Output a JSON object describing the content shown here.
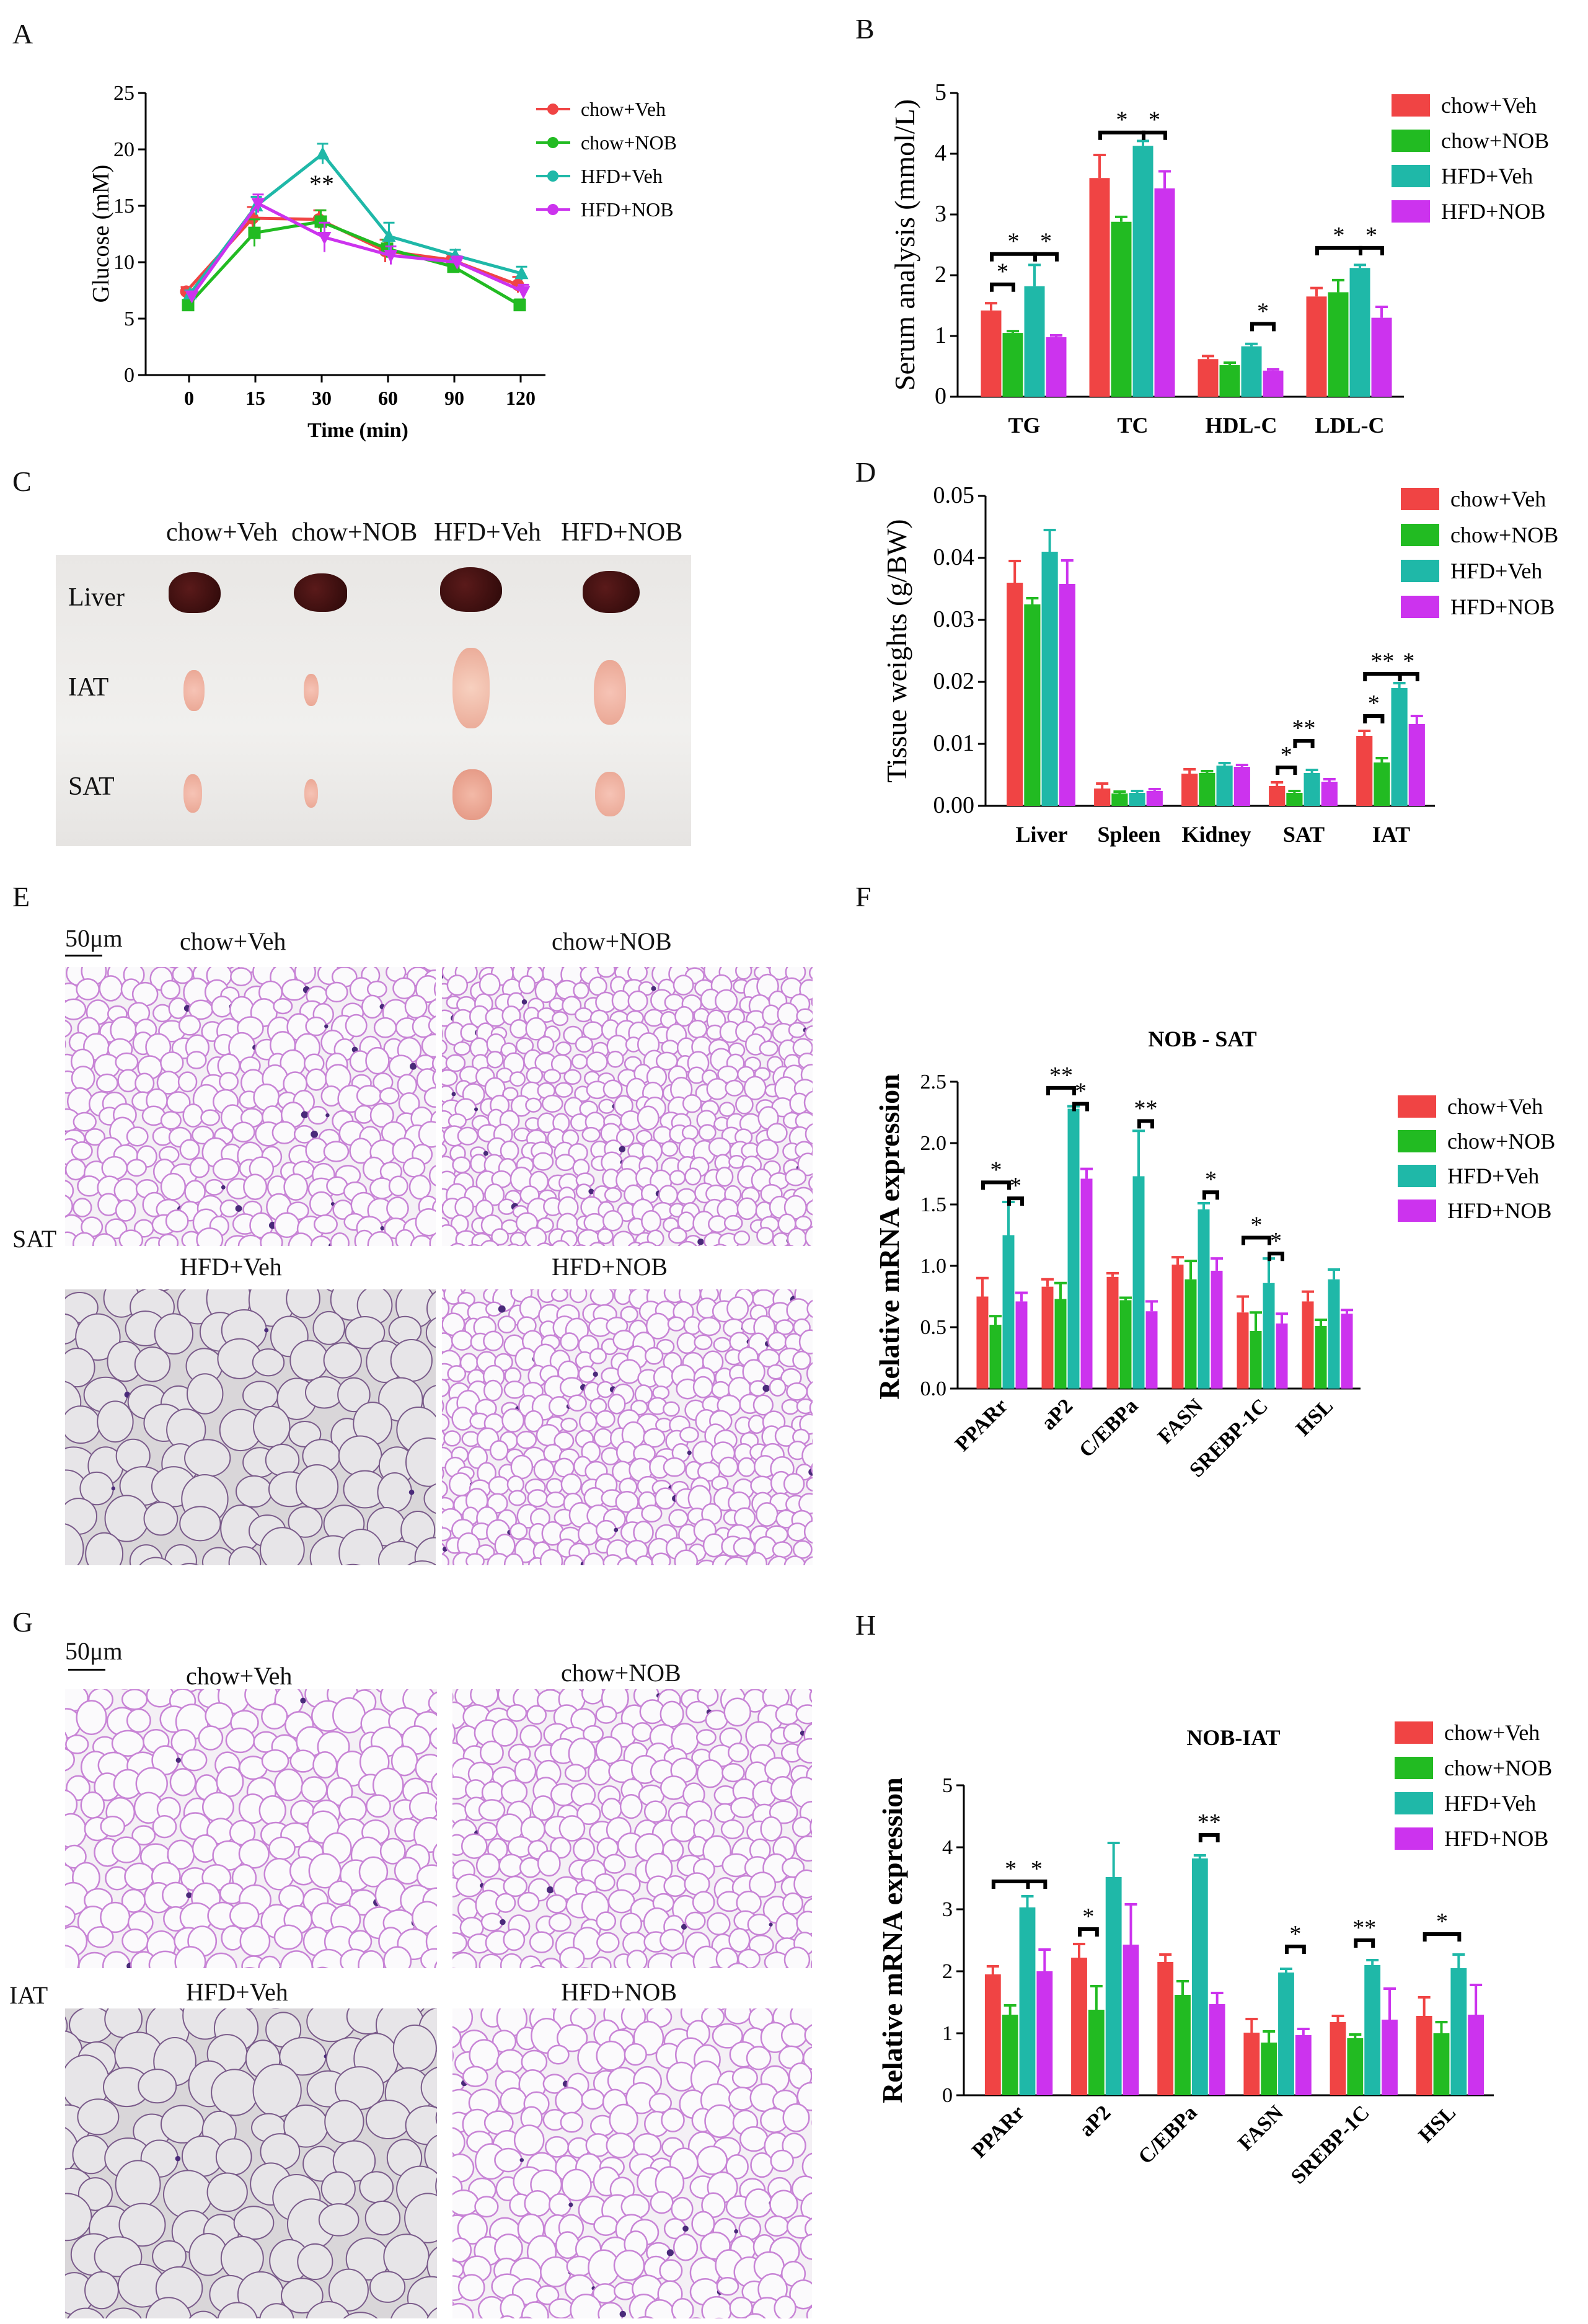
{
  "panels": {
    "A": "A",
    "B": "B",
    "C": "C",
    "D": "D",
    "E": "E",
    "F": "F",
    "G": "G",
    "H": "H"
  },
  "colors": {
    "chow_veh": "#f04444",
    "chow_nob": "#22bb22",
    "hfd_veh": "#1fb8a8",
    "hfd_nob": "#cc33ee"
  },
  "chart_data": [
    {
      "id": "A",
      "type": "line",
      "title": "",
      "xlabel": "Time (min)",
      "ylabel": "Glucose (mM)",
      "x": [
        "0",
        "15",
        "30",
        "60",
        "90",
        "120"
      ],
      "ylim": [
        0,
        25
      ],
      "yticks": [
        "0",
        "5",
        "10",
        "15",
        "20",
        "25"
      ],
      "annotations": [
        {
          "x_index": 2,
          "text": "**"
        }
      ],
      "series": [
        {
          "name": "chow+Veh",
          "values": [
            7.4,
            13.9,
            13.8,
            11.0,
            10.2,
            8.0
          ],
          "errors": [
            0.4,
            1.0,
            0.8,
            1.0,
            0.5,
            0.7
          ]
        },
        {
          "name": "chow+NOB",
          "values": [
            6.2,
            12.6,
            13.6,
            11.2,
            9.6,
            6.2
          ],
          "errors": [
            0.3,
            1.2,
            1.0,
            0.8,
            0.5,
            0.5
          ]
        },
        {
          "name": "HFD+Veh",
          "values": [
            7.2,
            15.0,
            19.6,
            12.3,
            10.6,
            9.0
          ],
          "errors": [
            0.3,
            0.8,
            0.9,
            1.2,
            0.5,
            0.6
          ]
        },
        {
          "name": "HFD+NOB",
          "values": [
            7.0,
            15.2,
            12.2,
            10.6,
            10.0,
            7.4
          ],
          "errors": [
            0.3,
            0.8,
            1.3,
            0.8,
            0.5,
            0.6
          ]
        }
      ]
    },
    {
      "id": "B",
      "type": "bar",
      "title": "",
      "xlabel": "",
      "ylabel": "Serum analysis (mmol/L)",
      "categories": [
        "TG",
        "TC",
        "HDL-C",
        "LDL-C"
      ],
      "ylim": [
        0,
        5
      ],
      "yticks": [
        "0",
        "1",
        "2",
        "3",
        "4",
        "5"
      ],
      "series": [
        {
          "name": "chow+Veh",
          "values": [
            1.42,
            3.6,
            0.62,
            1.65
          ],
          "errors": [
            0.12,
            0.38,
            0.05,
            0.14
          ]
        },
        {
          "name": "chow+NOB",
          "values": [
            1.05,
            2.88,
            0.52,
            1.72
          ],
          "errors": [
            0.03,
            0.08,
            0.04,
            0.2
          ]
        },
        {
          "name": "HFD+Veh",
          "values": [
            1.82,
            4.13,
            0.83,
            2.12
          ],
          "errors": [
            0.35,
            0.08,
            0.04,
            0.05
          ]
        },
        {
          "name": "HFD+NOB",
          "values": [
            0.98,
            3.43,
            0.43,
            1.3
          ],
          "errors": [
            0.03,
            0.28,
            0.02,
            0.18
          ]
        }
      ],
      "sig": [
        {
          "cat": 0,
          "from": 0,
          "to": 2,
          "level": 2.35,
          "text": "*"
        },
        {
          "cat": 0,
          "from": 2,
          "to": 3,
          "level": 2.35,
          "text": "*"
        },
        {
          "cat": 0,
          "from": 0,
          "to": 1,
          "level": 1.85,
          "text": "*"
        },
        {
          "cat": 1,
          "from": 0,
          "to": 2,
          "level": 4.35,
          "text": "*"
        },
        {
          "cat": 1,
          "from": 2,
          "to": 3,
          "level": 4.35,
          "text": "*"
        },
        {
          "cat": 2,
          "from": 2,
          "to": 3,
          "level": 1.2,
          "text": "*"
        },
        {
          "cat": 3,
          "from": 0,
          "to": 2,
          "level": 2.45,
          "text": "*"
        },
        {
          "cat": 3,
          "from": 2,
          "to": 3,
          "level": 2.45,
          "text": "*"
        }
      ]
    },
    {
      "id": "D",
      "type": "bar",
      "title": "",
      "xlabel": "",
      "ylabel": "Tissue weights (g/BW)",
      "categories": [
        "Liver",
        "Spleen",
        "Kidney",
        "SAT",
        "IAT"
      ],
      "ylim": [
        0,
        0.05
      ],
      "yticks": [
        "0.00",
        "0.01",
        "0.02",
        "0.03",
        "0.04",
        "0.05"
      ],
      "series": [
        {
          "name": "chow+Veh",
          "values": [
            0.036,
            0.0028,
            0.0052,
            0.0032,
            0.0113
          ],
          "errors": [
            0.0035,
            0.0008,
            0.0007,
            0.0006,
            0.0008
          ]
        },
        {
          "name": "chow+NOB",
          "values": [
            0.0325,
            0.002,
            0.0053,
            0.0021,
            0.007
          ],
          "errors": [
            0.001,
            0.0003,
            0.0003,
            0.0003,
            0.0007
          ]
        },
        {
          "name": "HFD+Veh",
          "values": [
            0.041,
            0.0021,
            0.0065,
            0.0053,
            0.019
          ],
          "errors": [
            0.0035,
            0.0003,
            0.0004,
            0.0005,
            0.0008
          ]
        },
        {
          "name": "HFD+NOB",
          "values": [
            0.0358,
            0.0024,
            0.0063,
            0.0039,
            0.0132
          ],
          "errors": [
            0.0038,
            0.0003,
            0.0003,
            0.0004,
            0.0013
          ]
        }
      ],
      "sig": [
        {
          "cat": 3,
          "from": 0,
          "to": 1,
          "level": 0.0062,
          "text": "*"
        },
        {
          "cat": 3,
          "from": 1,
          "to": 2,
          "level": 0.0105,
          "text": "**"
        },
        {
          "cat": 4,
          "from": 0,
          "to": 2,
          "level": 0.0213,
          "text": "**"
        },
        {
          "cat": 4,
          "from": 2,
          "to": 3,
          "level": 0.0213,
          "text": "*"
        },
        {
          "cat": 4,
          "from": 0,
          "to": 1,
          "level": 0.0145,
          "text": "*"
        }
      ]
    },
    {
      "id": "F",
      "type": "bar",
      "title": "NOB - SAT",
      "xlabel": "",
      "ylabel": "Relative  mRNA expression",
      "categories": [
        "PPARr",
        "aP2",
        "C/EBPa",
        "FASN",
        "SREBP-1C",
        "HSL"
      ],
      "ylim": [
        0,
        2.5
      ],
      "yticks": [
        "0.0",
        "0.5",
        "1.0",
        "1.5",
        "2.0",
        "2.5"
      ],
      "series": [
        {
          "name": "chow+Veh",
          "values": [
            0.75,
            0.83,
            0.91,
            1.01,
            0.62,
            0.71
          ],
          "errors": [
            0.15,
            0.06,
            0.03,
            0.06,
            0.13,
            0.08
          ]
        },
        {
          "name": "chow+NOB",
          "values": [
            0.52,
            0.73,
            0.72,
            0.89,
            0.47,
            0.51
          ],
          "errors": [
            0.07,
            0.13,
            0.02,
            0.15,
            0.15,
            0.05
          ]
        },
        {
          "name": "HFD+Veh",
          "values": [
            1.25,
            2.28,
            1.73,
            1.46,
            0.86,
            0.89
          ],
          "errors": [
            0.27,
            0.02,
            0.37,
            0.05,
            0.2,
            0.08
          ]
        },
        {
          "name": "HFD+NOB",
          "values": [
            0.71,
            1.71,
            0.63,
            0.96,
            0.53,
            0.61
          ],
          "errors": [
            0.07,
            0.08,
            0.08,
            0.1,
            0.08,
            0.03
          ]
        }
      ],
      "sig": [
        {
          "cat": 0,
          "from": 0,
          "to": 2,
          "level": 1.68,
          "text": "*"
        },
        {
          "cat": 0,
          "from": 2,
          "to": 3,
          "level": 1.55,
          "text": "*"
        },
        {
          "cat": 1,
          "from": 0,
          "to": 2,
          "level": 2.45,
          "text": "**"
        },
        {
          "cat": 1,
          "from": 2,
          "to": 3,
          "level": 2.32,
          "text": "*"
        },
        {
          "cat": 2,
          "from": 2,
          "to": 3,
          "level": 2.18,
          "text": "**"
        },
        {
          "cat": 3,
          "from": 2,
          "to": 3,
          "level": 1.6,
          "text": "*"
        },
        {
          "cat": 4,
          "from": 0,
          "to": 2,
          "level": 1.23,
          "text": "*"
        },
        {
          "cat": 4,
          "from": 2,
          "to": 3,
          "level": 1.1,
          "text": "*"
        }
      ]
    },
    {
      "id": "H",
      "type": "bar",
      "title": "NOB-IAT",
      "xlabel": "",
      "ylabel": "Relative mRNA expression",
      "categories": [
        "PPARr",
        "aP2",
        "C/EBPa",
        "FASN",
        "SREBP-1C",
        "HSL"
      ],
      "ylim": [
        0,
        5
      ],
      "yticks": [
        "0",
        "1",
        "2",
        "3",
        "4",
        "5"
      ],
      "series": [
        {
          "name": "chow+Veh",
          "values": [
            1.95,
            2.22,
            2.15,
            1.01,
            1.18,
            1.28
          ],
          "errors": [
            0.13,
            0.22,
            0.12,
            0.22,
            0.1,
            0.3
          ]
        },
        {
          "name": "chow+NOB",
          "values": [
            1.3,
            1.38,
            1.62,
            0.85,
            0.92,
            1.0
          ],
          "errors": [
            0.15,
            0.38,
            0.22,
            0.18,
            0.06,
            0.18
          ]
        },
        {
          "name": "HFD+Veh",
          "values": [
            3.03,
            3.52,
            3.82,
            1.98,
            2.1,
            2.05
          ],
          "errors": [
            0.18,
            0.55,
            0.05,
            0.06,
            0.08,
            0.22
          ]
        },
        {
          "name": "HFD+NOB",
          "values": [
            2.0,
            2.43,
            1.47,
            0.97,
            1.22,
            1.3
          ],
          "errors": [
            0.35,
            0.65,
            0.18,
            0.1,
            0.5,
            0.48
          ]
        }
      ],
      "sig": [
        {
          "cat": 0,
          "from": 0,
          "to": 2,
          "level": 3.45,
          "text": "*"
        },
        {
          "cat": 0,
          "from": 2,
          "to": 3,
          "level": 3.45,
          "text": "*"
        },
        {
          "cat": 1,
          "from": 0,
          "to": 1,
          "level": 2.68,
          "text": "*"
        },
        {
          "cat": 2,
          "from": 2,
          "to": 3,
          "level": 4.2,
          "text": "**"
        },
        {
          "cat": 3,
          "from": 2,
          "to": 3,
          "level": 2.4,
          "text": "*"
        },
        {
          "cat": 4,
          "from": 1,
          "to": 2,
          "level": 2.5,
          "text": "**"
        },
        {
          "cat": 5,
          "from": 0,
          "to": 2,
          "level": 2.6,
          "text": "*"
        }
      ]
    }
  ],
  "photo_C": {
    "columns": [
      "chow+Veh",
      "chow+NOB",
      "HFD+Veh",
      "HFD+NOB"
    ],
    "rows": [
      "Liver",
      "IAT",
      "SAT"
    ]
  },
  "histo_E": {
    "scale": "50μm",
    "side_label": "SAT",
    "titles": [
      "chow+Veh",
      "chow+NOB",
      "HFD+Veh",
      "HFD+NOB"
    ]
  },
  "histo_G": {
    "scale": "50μm",
    "side_label": "IAT",
    "titles": [
      "chow+Veh",
      "chow+NOB",
      "HFD+Veh",
      "HFD+NOB"
    ]
  }
}
